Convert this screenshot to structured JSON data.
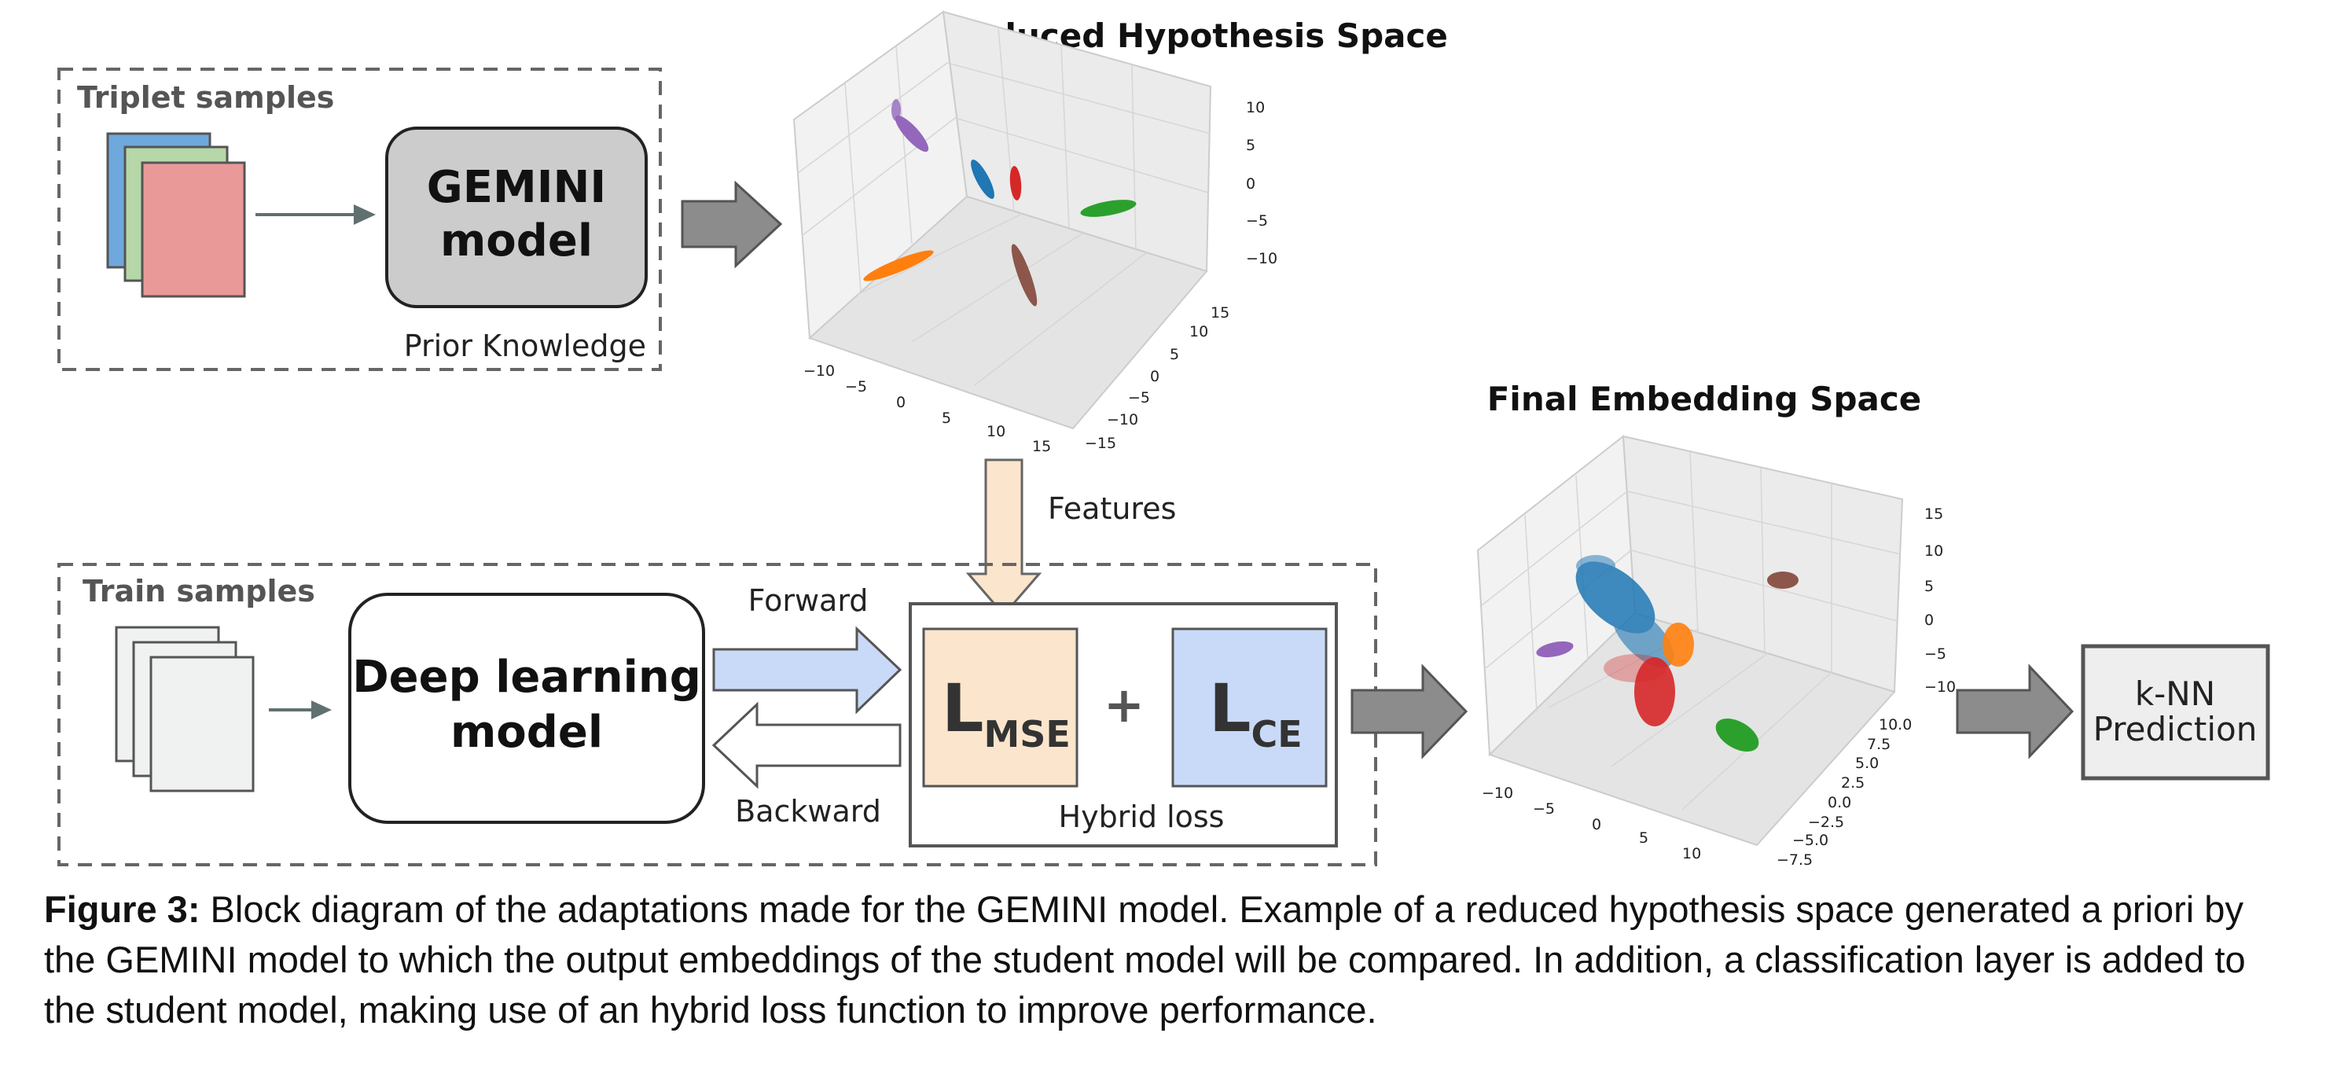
{
  "top_block": {
    "title": "Triplet samples",
    "model_line1": "GEMINI",
    "model_line2": "model",
    "footer": "Prior Knowledge"
  },
  "reduced_space": {
    "title": "Reduced Hypothesis Space",
    "z_ticks": [
      "10",
      "5",
      "0",
      "−5",
      "−10"
    ],
    "x_ticks": [
      "−10",
      "−5",
      "0",
      "5",
      "10",
      "15"
    ],
    "y_ticks": [
      "15",
      "10",
      "5",
      "0",
      "−5",
      "−10",
      "−15"
    ]
  },
  "features_label": "Features",
  "bottom_block": {
    "title": "Train samples",
    "model_line1": "Deep learning",
    "model_line2": "model",
    "forward": "Forward",
    "backward": "Backward",
    "loss_mse_main": "L",
    "loss_mse_sub": "MSE",
    "plus": "+",
    "loss_ce_main": "L",
    "loss_ce_sub": "CE",
    "hybrid": "Hybrid loss"
  },
  "final_space": {
    "title": "Final Embedding Space",
    "z_ticks": [
      "15",
      "10",
      "5",
      "0",
      "−5",
      "−10"
    ],
    "x_ticks": [
      "−10",
      "−5",
      "0",
      "5",
      "10"
    ],
    "y_ticks": [
      "10.0",
      "7.5",
      "5.0",
      "2.5",
      "0.0",
      "−2.5",
      "−5.0",
      "−7.5"
    ]
  },
  "knn_line1": "k-NN",
  "knn_line2": "Prediction",
  "caption": {
    "label": "Figure 3:",
    "text": " Block diagram of the adaptations made for the GEMINI model. Example of a reduced hypothesis space generated a priori by the GEMINI model to which the output embeddings of the student model will be compared. In addition, a classification layer is added to the student model, making use of an hybrid loss function to improve performance."
  },
  "colors": {
    "blue": "#1f77b4",
    "orange": "#ff7f0e",
    "green": "#2ca02c",
    "red": "#d62728",
    "purple": "#9467bd",
    "brown": "#8c564b",
    "gray_arrow": "#8c8c8c",
    "forward_fill": "#c9daf8",
    "features_fill": "#fce5cd"
  }
}
